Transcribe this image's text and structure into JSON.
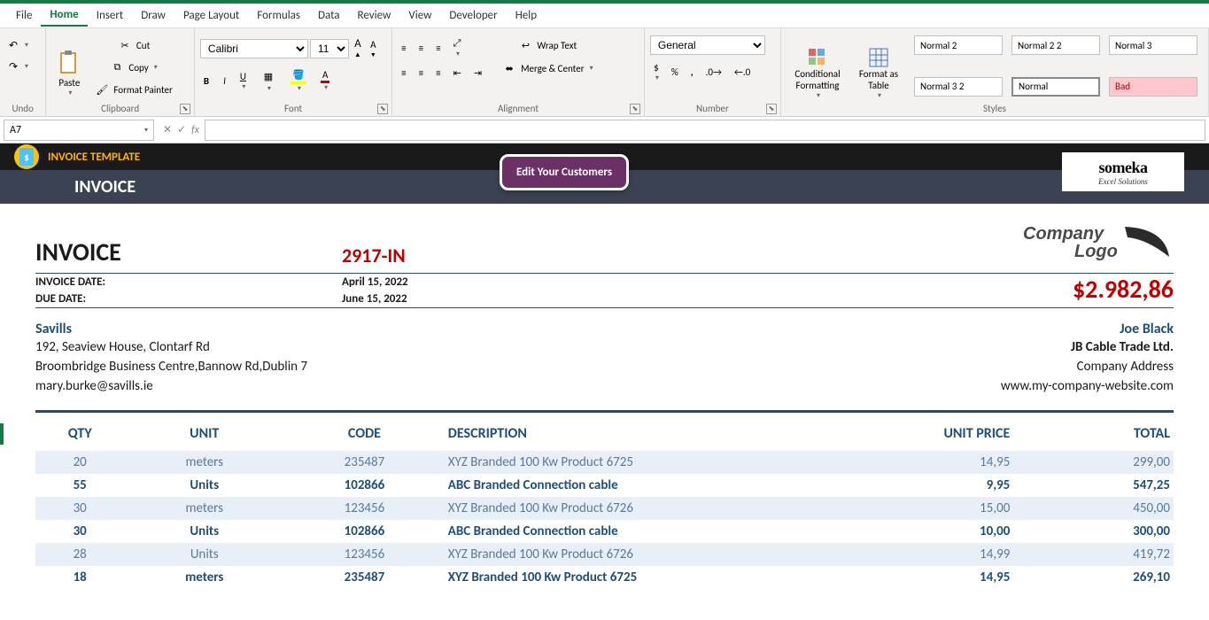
{
  "menu": {
    "items": [
      "File",
      "Home",
      "Insert",
      "Draw",
      "Page Layout",
      "Formulas",
      "Data",
      "Review",
      "View",
      "Developer",
      "Help"
    ],
    "active": "Home"
  },
  "ribbon": {
    "undo": {
      "label": "Undo"
    },
    "clipboard": {
      "label": "Clipboard",
      "paste": "Paste",
      "cut": "Cut",
      "copy": "Copy",
      "fmt": "Format Painter"
    },
    "font": {
      "label": "Font",
      "name": "Calibri",
      "size": "11"
    },
    "alignment": {
      "label": "Alignment",
      "wrap": "Wrap Text",
      "merge": "Merge & Center"
    },
    "number": {
      "label": "Number",
      "format": "General"
    },
    "styles": {
      "label": "Styles",
      "cond": "Conditional Formatting",
      "table": "Format as Table",
      "cells": [
        "Normal 2",
        "Normal 2 2",
        "Normal 3",
        "Normal 3 2",
        "Normal",
        "Bad"
      ]
    }
  },
  "formula_bar": {
    "cell": "A7",
    "fx": "fx",
    "value": ""
  },
  "banner": {
    "template": "INVOICE TEMPLATE",
    "title": "INVOICE",
    "edit_btn": "Edit Your Customers",
    "someka_t1": "someka",
    "someka_t2": "Excel Solutions"
  },
  "invoice": {
    "heading": "INVOICE",
    "number": "2917-IN",
    "company_logo_text": "Company Logo",
    "date_label": "INVOICE DATE:",
    "date_value": "April 15, 2022",
    "due_label": "DUE DATE:",
    "due_value": "June 15, 2022",
    "total": "$2.982,86",
    "from": {
      "name": "Savills",
      "line1": "192, Seaview House, Clontarf Rd",
      "line2": "Broombridge Business Centre,Bannow Rd,Dublin 7",
      "line3": "mary.burke@savills.ie"
    },
    "to": {
      "name": "Joe Black",
      "line1": "JB Cable Trade Ltd.",
      "line2": "Company Address",
      "line3": "www.my-company-website.com"
    },
    "columns": {
      "qty": "QTY",
      "unit": "UNIT",
      "code": "CODE",
      "desc": "DESCRIPTION",
      "price": "UNIT PRICE",
      "total": "TOTAL"
    },
    "rows": [
      {
        "qty": "20",
        "unit": "meters",
        "code": "235487",
        "desc": "XYZ Branded 100 Kw Product 6725",
        "price": "14,95",
        "total": "299,00"
      },
      {
        "qty": "55",
        "unit": "Units",
        "code": "102866",
        "desc": "ABC Branded Connection cable",
        "price": "9,95",
        "total": "547,25"
      },
      {
        "qty": "30",
        "unit": "meters",
        "code": "123456",
        "desc": "XYZ Branded 100 Kw Product 6726",
        "price": "15,00",
        "total": "450,00"
      },
      {
        "qty": "30",
        "unit": "Units",
        "code": "102866",
        "desc": "ABC Branded Connection cable",
        "price": "10,00",
        "total": "300,00"
      },
      {
        "qty": "28",
        "unit": "Units",
        "code": "123456",
        "desc": "XYZ Branded 100 Kw Product 6726",
        "price": "14,99",
        "total": "419,72"
      },
      {
        "qty": "18",
        "unit": "meters",
        "code": "235487",
        "desc": "XYZ Branded 100 Kw Product 6725",
        "price": "14,95",
        "total": "269,10"
      }
    ]
  },
  "colors": {
    "accent_green": "#107c41",
    "ribbon_bg": "#f3f2f1",
    "banner_black": "#1a1a1a",
    "banner_blue": "#3b4252",
    "banner_gold": "#ffb300",
    "inv_red": "#c00000",
    "inv_blue": "#1f4e79",
    "row_odd_bg": "#e8eff7",
    "edit_btn_bg": "#6b3065"
  }
}
